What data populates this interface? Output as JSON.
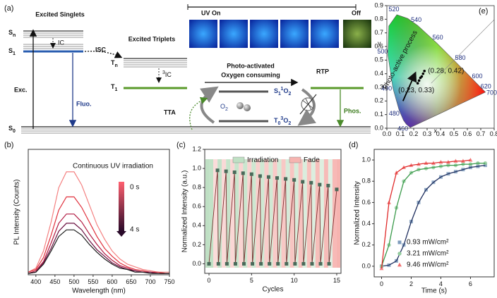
{
  "panel_labels": [
    "(a)",
    "(b)",
    "(c)",
    "(d)",
    "(e)"
  ],
  "diagram": {
    "singlets_title": "Excited Singlets",
    "sn": {
      "text": "S",
      "sub": "n"
    },
    "s1": {
      "text": "S",
      "sub": "1"
    },
    "ic": "IC",
    "isc": "ISC",
    "triplets_title": "Excited Triplets",
    "tn": {
      "text": "T",
      "sub": "n"
    },
    "t1": {
      "text": "T",
      "sub": "1"
    },
    "tic": {
      "sup": "3",
      "text": "IC"
    },
    "exc": "Exc.",
    "fluo": "Fluo.",
    "s0": {
      "text": "S",
      "sub": "0"
    },
    "uv_on": "UV On",
    "off": "Off",
    "photo1": "Photo-activated",
    "photo2": "Oxygen consuming",
    "o2_singlet": [
      {
        "text": "S",
        "sub": "1"
      },
      {
        "sup": "1",
        "text": "O",
        "sub": "2"
      }
    ],
    "o2_triplet": [
      {
        "text": "T",
        "sub": "0"
      },
      {
        "sup": "3",
        "text": "O",
        "sub": "2"
      }
    ],
    "o2": {
      "text": "O",
      "sub": "2"
    },
    "tta": "TTA",
    "rtp": "RTP",
    "phos": "Phos."
  },
  "chart_data": [
    {
      "type": "line",
      "x_label": "Wavelength (nm)",
      "y_label": "PL Intensity (Counts)",
      "annotation": "Continuous UV irradiation",
      "colorbar_labels": [
        "0 s",
        "4 s"
      ],
      "colorbar_colors": [
        "#ff6070",
        "#2a0a2a"
      ],
      "x": [
        380,
        400,
        420,
        440,
        460,
        480,
        500,
        520,
        540,
        560,
        580,
        600,
        620,
        640,
        660,
        680,
        700,
        720,
        740,
        750
      ],
      "xlim": [
        380,
        750
      ],
      "xticks": [
        400,
        450,
        500,
        550,
        600,
        650,
        700,
        750
      ],
      "ylim": [
        0,
        0.95
      ],
      "yticks": [],
      "series": [
        {
          "color": "#f48080",
          "values": [
            0.02,
            0.05,
            0.18,
            0.4,
            0.66,
            0.78,
            0.78,
            0.68,
            0.53,
            0.38,
            0.27,
            0.18,
            0.12,
            0.08,
            0.06,
            0.04,
            0.03,
            0.02,
            0.02,
            0.02
          ]
        },
        {
          "color": "#e0303c",
          "values": [
            0.02,
            0.04,
            0.13,
            0.3,
            0.49,
            0.59,
            0.59,
            0.51,
            0.4,
            0.29,
            0.2,
            0.14,
            0.09,
            0.06,
            0.04,
            0.03,
            0.02,
            0.02,
            0.01,
            0.01
          ]
        },
        {
          "color": "#b01840",
          "values": [
            0.01,
            0.03,
            0.1,
            0.24,
            0.39,
            0.46,
            0.46,
            0.4,
            0.31,
            0.23,
            0.16,
            0.11,
            0.07,
            0.05,
            0.03,
            0.02,
            0.02,
            0.01,
            0.01,
            0.01
          ]
        },
        {
          "color": "#6a1040",
          "values": [
            0.01,
            0.02,
            0.09,
            0.2,
            0.33,
            0.39,
            0.39,
            0.34,
            0.26,
            0.19,
            0.14,
            0.09,
            0.06,
            0.04,
            0.03,
            0.02,
            0.02,
            0.01,
            0.01,
            0.01
          ]
        },
        {
          "color": "#1a1a1a",
          "values": [
            0.01,
            0.02,
            0.08,
            0.18,
            0.29,
            0.34,
            0.34,
            0.3,
            0.23,
            0.17,
            0.12,
            0.08,
            0.05,
            0.04,
            0.02,
            0.02,
            0.01,
            0.01,
            0.01,
            0.01
          ]
        }
      ]
    },
    {
      "type": "line",
      "x_label": "Cycles",
      "y_label": "Normalized Intensity (a.u.)",
      "bands": [
        {
          "name": "Irradiation",
          "color": "#bfe0c4"
        },
        {
          "name": "Fade",
          "color": "#f6b4b0"
        }
      ],
      "x": [
        0,
        1,
        1.1,
        2,
        2.1,
        3,
        3.1,
        4,
        4.1,
        5,
        5.1,
        6,
        6.1,
        7,
        7.1,
        8,
        8.1,
        9,
        9.1,
        10,
        10.1,
        11,
        11.1,
        12,
        12.1,
        13,
        13.1,
        14,
        14.1,
        15
      ],
      "xlim": [
        -0.5,
        15.5
      ],
      "xticks": [
        0,
        5,
        10,
        15
      ],
      "ylim": [
        -0.1,
        1.2
      ],
      "yticks": [
        {
          "value": 0,
          "label": "0.0"
        },
        0.2,
        0.4,
        0.6,
        0.8,
        {
          "value": 1,
          "label": "1.0"
        },
        1.2
      ],
      "series": [
        {
          "color": "#4a6a5a",
          "line_color": "#7a3030",
          "marker": "square",
          "values": [
            0,
            0.98,
            0,
            0.97,
            0,
            0.96,
            0,
            0.95,
            0,
            0.94,
            0,
            0.92,
            0,
            0.91,
            0,
            0.9,
            0,
            0.89,
            0,
            0.88,
            0,
            0.86,
            0,
            0.85,
            0,
            0.83,
            0,
            0.82,
            0,
            0.78
          ]
        }
      ]
    },
    {
      "type": "line",
      "x_label": "Time (s)",
      "y_label": "Normalized Intensity",
      "xlim": [
        -0.5,
        7.6
      ],
      "xticks": [
        0,
        2,
        4,
        6
      ],
      "ylim": [
        -0.1,
        1.1
      ],
      "yticks": [
        {
          "value": 0,
          "label": "0.0"
        },
        0.2,
        0.4,
        0.6,
        0.8,
        {
          "value": 1,
          "label": "1.0"
        }
      ],
      "series": [
        {
          "name": "0.93 mW/cm²",
          "color": "#7f9cbc",
          "line_color": "#1f2f5f",
          "marker": "square",
          "x": [
            0,
            0.5,
            1,
            1.5,
            2,
            2.5,
            3,
            3.5,
            4,
            4.5,
            5,
            5.5,
            6,
            6.5,
            7
          ],
          "values": [
            0.0,
            0.01,
            0.05,
            0.2,
            0.42,
            0.6,
            0.72,
            0.79,
            0.84,
            0.87,
            0.89,
            0.91,
            0.93,
            0.94,
            0.95
          ]
        },
        {
          "name": "3.21 mW/cm²",
          "color": "#94cc9e",
          "line_color": "#3a9a4a",
          "marker": "circle",
          "x": [
            0,
            0.5,
            1,
            1.5,
            2,
            2.5,
            3,
            3.5,
            4,
            4.5,
            5,
            5.5,
            6,
            6.5,
            7
          ],
          "values": [
            0.0,
            0.2,
            0.55,
            0.8,
            0.88,
            0.91,
            0.92,
            0.93,
            0.94,
            0.95,
            0.95,
            0.96,
            0.96,
            0.97,
            0.97
          ]
        },
        {
          "name": "9.46 mW/cm²",
          "color": "#f07070",
          "line_color": "#e02a2a",
          "marker": "triangle",
          "x": [
            0,
            0.5,
            1,
            1.5,
            2,
            2.5,
            3,
            3.5,
            4,
            4.5,
            5,
            5.5,
            6
          ],
          "values": [
            -0.02,
            0.6,
            0.88,
            0.93,
            0.95,
            0.96,
            0.97,
            0.97,
            0.98,
            0.98,
            0.99,
            0.99,
            1.0
          ]
        }
      ]
    },
    {
      "type": "scatter",
      "x_label": "x",
      "y_label": "y",
      "xlim": [
        0,
        0.8
      ],
      "xticks": [
        {
          "value": 0,
          "label": "0.0"
        },
        0.1,
        0.2,
        0.3,
        0.4,
        0.5,
        0.6,
        0.7,
        0.8
      ],
      "ylim": [
        0,
        0.9
      ],
      "yticks": [
        {
          "value": 0,
          "label": "0.0"
        },
        0.1,
        0.2,
        0.3,
        0.4,
        0.5,
        0.6,
        0.7,
        0.8,
        0.9
      ],
      "locus_wavelengths": [
        460,
        480,
        490,
        500,
        520,
        540,
        560,
        580,
        600,
        620,
        700
      ],
      "annotation": "Photo-active process",
      "point_labels": [
        "(0.23, 0.33)",
        "(0.28, 0.42)"
      ],
      "series": [
        {
          "color": "#000000",
          "x": [
            0.23,
            0.24,
            0.25,
            0.26,
            0.27,
            0.28
          ],
          "values": [
            0.33,
            0.35,
            0.37,
            0.38,
            0.4,
            0.42
          ]
        }
      ]
    }
  ]
}
